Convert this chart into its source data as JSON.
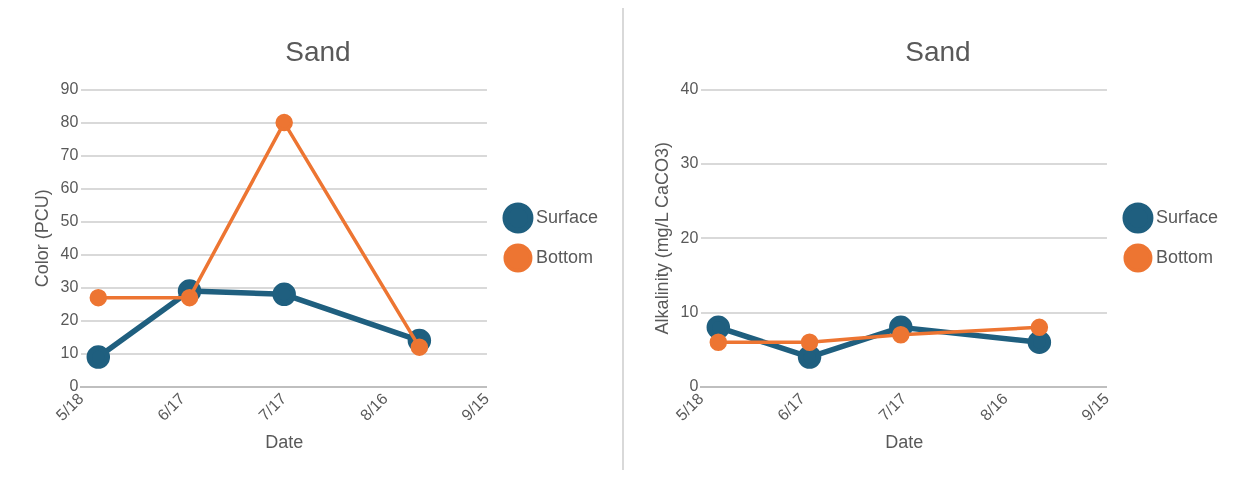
{
  "chart_data": [
    {
      "type": "line",
      "title": "Sand",
      "xlabel": "Date",
      "ylabel": "Color (PCU)",
      "x": [
        "--05-23",
        "--06-19",
        "--07-17",
        "--08-26"
      ],
      "series": [
        {
          "name": "Surface",
          "color": "#1f5f7f",
          "values": [
            9,
            29,
            28,
            14
          ]
        },
        {
          "name": "Bottom",
          "color": "#ed7532",
          "values": [
            27,
            27,
            80,
            12
          ]
        }
      ],
      "xlim": [
        "--05-18",
        "--09-15"
      ],
      "xticks": [
        {
          "value": "--05-18",
          "label": "5/18"
        },
        {
          "value": "--06-17",
          "label": "6/17"
        },
        {
          "value": "--07-17",
          "label": "7/17"
        },
        {
          "value": "--08-16",
          "label": "8/16"
        },
        {
          "value": "--09-15",
          "label": "9/15"
        }
      ],
      "ylim": [
        0,
        90
      ],
      "yticks": [
        0,
        10,
        20,
        30,
        40,
        50,
        60,
        70,
        80,
        90
      ],
      "grid": "y",
      "legend": "right",
      "marker": "circle",
      "line_style": "solid"
    },
    {
      "type": "line",
      "title": "Sand",
      "xlabel": "Date",
      "ylabel": "Alkalinity (mg/L CaCO3)",
      "x": [
        "--05-23",
        "--06-19",
        "--07-16",
        "--08-26"
      ],
      "series": [
        {
          "name": "Surface",
          "color": "#1f5f7f",
          "values": [
            8,
            4,
            8,
            6
          ]
        },
        {
          "name": "Bottom",
          "color": "#ed7532",
          "values": [
            6,
            6,
            7,
            8
          ]
        }
      ],
      "xlim": [
        "--05-18",
        "--09-15"
      ],
      "xticks": [
        {
          "value": "--05-18",
          "label": "5/18"
        },
        {
          "value": "--06-17",
          "label": "6/17"
        },
        {
          "value": "--07-17",
          "label": "7/17"
        },
        {
          "value": "--08-16",
          "label": "8/16"
        },
        {
          "value": "--09-15",
          "label": "9/15"
        }
      ],
      "ylim": [
        0,
        40
      ],
      "yticks": [
        0,
        10,
        20,
        30,
        40
      ],
      "grid": "y",
      "legend": "right",
      "marker": "circle",
      "line_style": "solid"
    }
  ]
}
